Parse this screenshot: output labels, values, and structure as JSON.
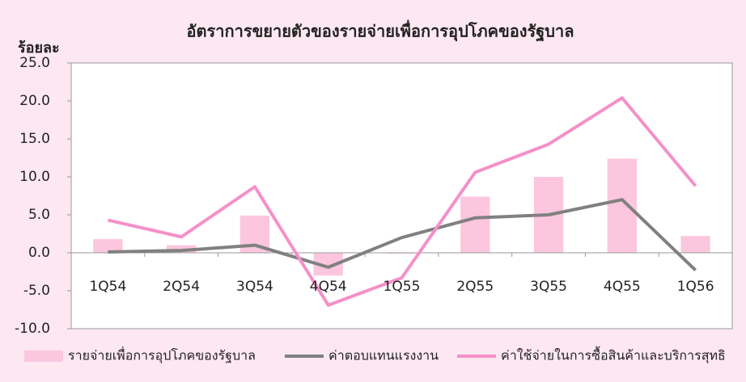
{
  "chart_data": {
    "type": "bar_line",
    "title": "อัตราการขยายตัวของรายจ่ายเพื่อการอุปโภคของรัฐบาล",
    "y_label": "ร้อยละ",
    "categories": [
      "1Q54",
      "2Q54",
      "3Q54",
      "4Q54",
      "1Q55",
      "2Q55",
      "3Q55",
      "4Q55",
      "1Q56"
    ],
    "series": [
      {
        "name": "รายจ่ายเพื่อการอุปโภคของรัฐบาล",
        "kind": "bar",
        "color": "#fcc6df",
        "values": [
          1.8,
          1.0,
          4.9,
          -3.0,
          -0.1,
          7.4,
          10.0,
          12.4,
          2.2
        ]
      },
      {
        "name": "ค่าตอบแทนแรงงาน",
        "kind": "line",
        "color": "#808080",
        "values": [
          0.1,
          0.3,
          1.0,
          -1.9,
          2.0,
          4.6,
          5.0,
          7.0,
          -2.3
        ]
      },
      {
        "name": "ค่าใช้จ่ายในการซื้อสินค้าและบริการสุทธิ",
        "kind": "line",
        "color": "#f590c8",
        "values": [
          4.3,
          2.1,
          8.7,
          -6.9,
          -3.3,
          10.6,
          14.3,
          20.4,
          8.8
        ]
      }
    ],
    "ylim": [
      -10,
      25
    ],
    "yticks": [
      {
        "value": 25,
        "label": "25.0"
      },
      {
        "value": 20,
        "label": "20.0"
      },
      {
        "value": 15,
        "label": "15.0"
      },
      {
        "value": 10,
        "label": "10.0"
      },
      {
        "value": 5,
        "label": "5.0"
      },
      {
        "value": 0,
        "label": "0.0"
      },
      {
        "value": -5,
        "label": "-5.0"
      },
      {
        "value": -10,
        "label": "-10.0"
      }
    ],
    "grid": false
  }
}
